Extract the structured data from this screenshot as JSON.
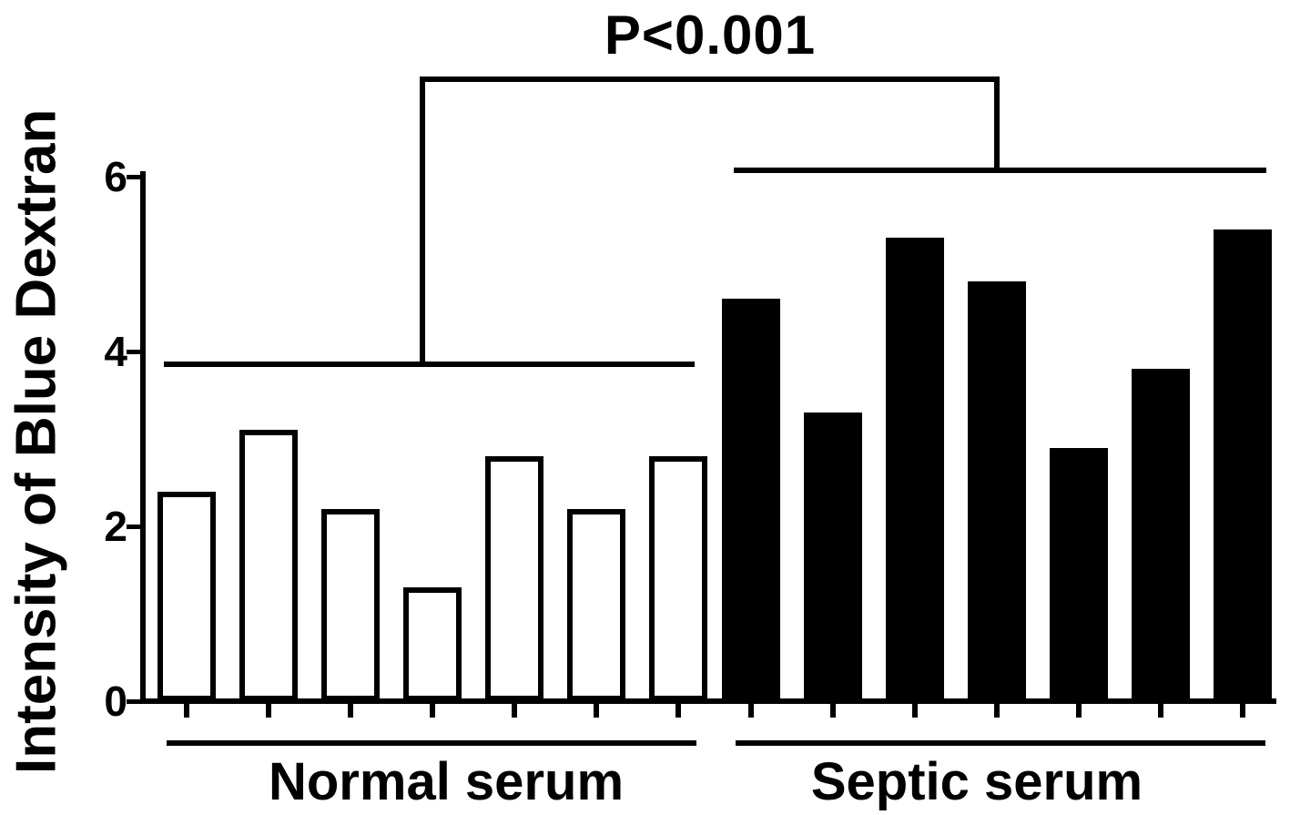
{
  "colors": {
    "ink": "#000000",
    "background": "#ffffff"
  },
  "y_axis": {
    "label": "Intensity of Blue Dextran",
    "tick_labels": [
      "6",
      "4",
      "2",
      "0"
    ]
  },
  "groups": [
    {
      "label": "Normal serum"
    },
    {
      "label": "Septic serum"
    }
  ],
  "chart_data": {
    "type": "bar",
    "title": "",
    "xlabel": "",
    "ylabel": "Intensity of Blue Dextran",
    "ylim": [
      0,
      6
    ],
    "yticks": [
      6,
      4,
      2,
      0
    ],
    "grid": false,
    "legend": "none",
    "series": [
      {
        "name": "Normal serum",
        "fill": "#ffffff",
        "values": [
          2.4,
          3.1,
          2.2,
          1.3,
          2.8,
          2.2,
          2.8
        ]
      },
      {
        "name": "Septic serum",
        "fill": "#000000",
        "values": [
          4.6,
          3.3,
          5.3,
          4.8,
          2.9,
          3.8,
          5.4
        ]
      }
    ],
    "annotations": [
      {
        "type": "significance_bracket",
        "text": "P<0.001",
        "compares": [
          "Normal serum",
          "Septic serum"
        ]
      }
    ]
  }
}
